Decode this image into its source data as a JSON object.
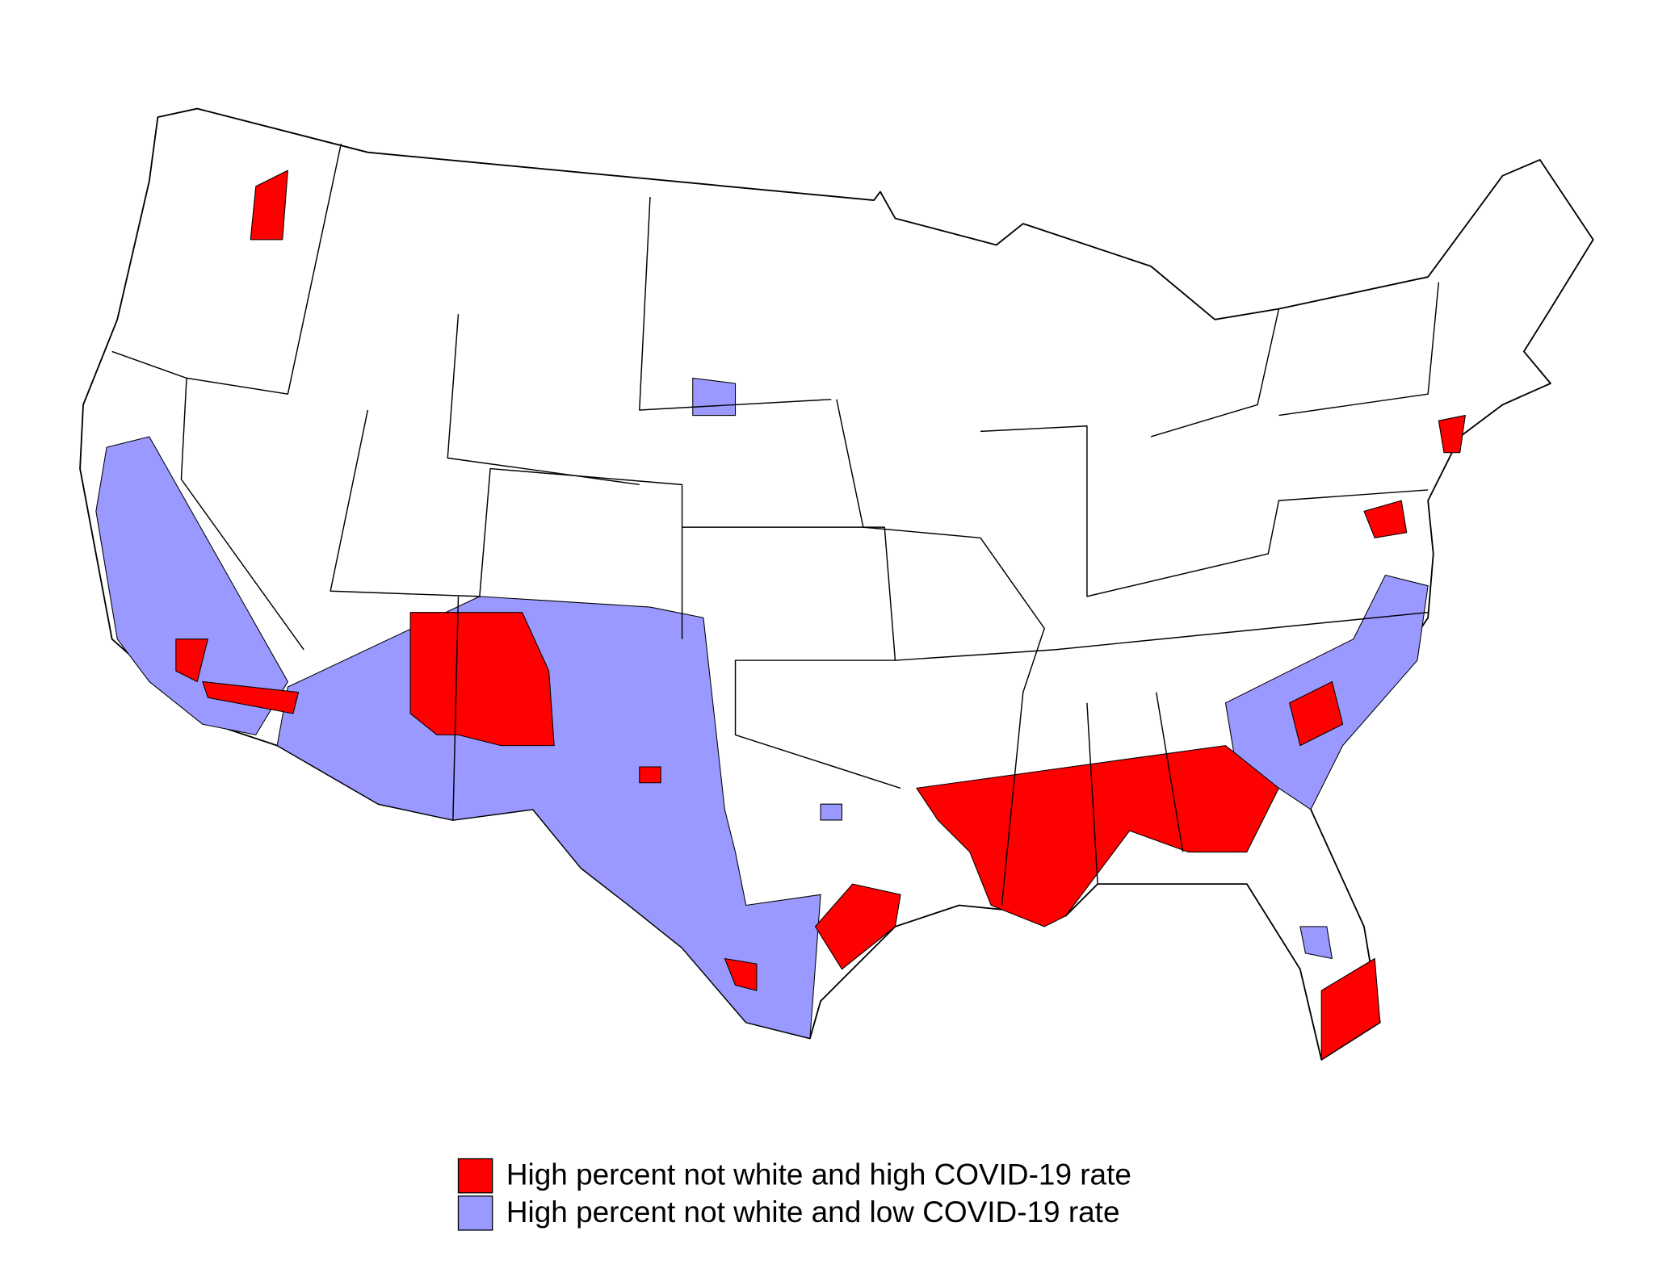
{
  "legend": {
    "items": [
      {
        "label": "High percent not white and high COVID-19 rate",
        "color": "#ff0000"
      },
      {
        "label": "High percent not white and low COVID-19 rate",
        "color": "#9999ff"
      }
    ]
  }
}
